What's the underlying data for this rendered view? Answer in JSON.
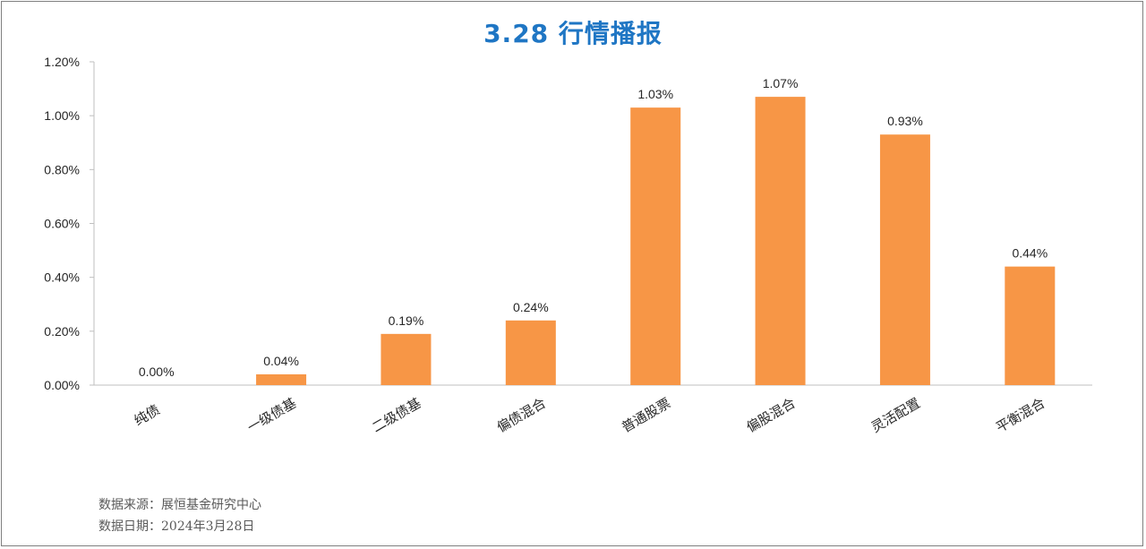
{
  "title": "3.28 行情播报",
  "footer": {
    "source": "数据来源：展恒基金研究中心",
    "date": "数据日期：2024年3月28日"
  },
  "colors": {
    "bar": "#f79646",
    "title": "#1f76c4",
    "axis": "#bfbfbf"
  },
  "chart_data": {
    "type": "bar",
    "title": "3.28 行情播报",
    "categories": [
      "纯债",
      "一级债基",
      "二级债基",
      "偏债混合",
      "普通股票",
      "偏股混合",
      "灵活配置",
      "平衡混合"
    ],
    "values": [
      0.0,
      0.04,
      0.19,
      0.24,
      1.03,
      1.07,
      0.93,
      0.44
    ],
    "data_labels": [
      "0.00%",
      "0.04%",
      "0.19%",
      "0.24%",
      "1.03%",
      "1.07%",
      "0.93%",
      "0.44%"
    ],
    "yticks": [
      "0.00%",
      "0.20%",
      "0.40%",
      "0.60%",
      "0.80%",
      "1.00%",
      "1.20%"
    ],
    "ylim": [
      0,
      1.2
    ],
    "xlabel": "",
    "ylabel": "",
    "grid": false,
    "legend": "none"
  }
}
